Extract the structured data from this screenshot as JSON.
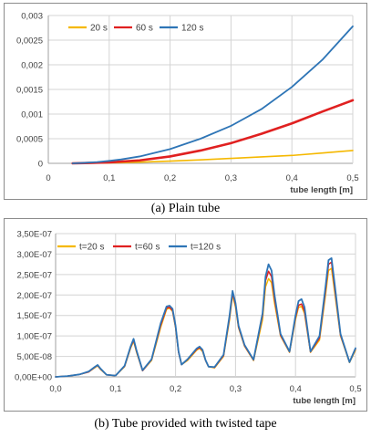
{
  "charts": [
    {
      "id": "a",
      "caption": "(a) Plain tube",
      "chart_data": {
        "type": "line",
        "title": "",
        "xlabel": "tube length [m]",
        "ylabel": "",
        "xlim": [
          0,
          0.5
        ],
        "ylim": [
          0,
          0.003
        ],
        "grid": true,
        "legend": "top-left",
        "x_ticks": [
          "0",
          "0,1",
          "0,2",
          "0,3",
          "0,4",
          "0,5"
        ],
        "y_ticks": [
          "0",
          "0,0005",
          "0,001",
          "0,0015",
          "0,002",
          "0,0025",
          "0,003"
        ],
        "series": [
          {
            "name": "20 s",
            "color": "#f5b800",
            "width": 1.6,
            "x": [
              0.04,
              0.06,
              0.08,
              0.1,
              0.12,
              0.15,
              0.2,
              0.25,
              0.3,
              0.35,
              0.4,
              0.45,
              0.5
            ],
            "y": [
              0.0,
              2e-06,
              6e-06,
              1e-05,
              1.5e-05,
              2.5e-05,
              4.5e-05,
              7e-05,
              0.0001,
              0.00013,
              0.00016,
              0.00021,
              0.00026
            ]
          },
          {
            "name": "60 s",
            "color": "#e02020",
            "width": 2.6,
            "x": [
              0.04,
              0.06,
              0.08,
              0.1,
              0.12,
              0.15,
              0.2,
              0.25,
              0.3,
              0.35,
              0.4,
              0.45,
              0.5
            ],
            "y": [
              0.0,
              5e-06,
              1.2e-05,
              2e-05,
              3.5e-05,
              6e-05,
              0.00014,
              0.00026,
              0.00041,
              0.0006,
              0.00081,
              0.00105,
              0.00128
            ]
          },
          {
            "name": "120 s",
            "color": "#2e75b6",
            "width": 1.8,
            "x": [
              0.04,
              0.06,
              0.08,
              0.1,
              0.12,
              0.15,
              0.2,
              0.25,
              0.3,
              0.35,
              0.4,
              0.45,
              0.5
            ],
            "y": [
              0.0,
              1e-05,
              2.5e-05,
              5e-05,
              8e-05,
              0.00014,
              0.00029,
              0.0005,
              0.00076,
              0.0011,
              0.00155,
              0.0021,
              0.00278
            ]
          }
        ]
      }
    },
    {
      "id": "b",
      "caption": "(b) Tube provided with twisted tape",
      "chart_data": {
        "type": "line",
        "title": "",
        "xlabel": "tube length [m]",
        "ylabel": "",
        "xlim": [
          0,
          0.5
        ],
        "ylim": [
          0,
          3.5e-07
        ],
        "grid": true,
        "legend": "top-left",
        "x_ticks": [
          "0,0",
          "0,1",
          "0,2",
          "0,3",
          "0,4",
          "0,5"
        ],
        "y_ticks": [
          "0,00E+00",
          "5,00E-08",
          "1,00E-07",
          "1,50E-07",
          "2,00E-07",
          "2,50E-07",
          "3,00E-07",
          "3,50E-07"
        ],
        "series": [
          {
            "name": "t=20 s",
            "color": "#f5b800",
            "width": 1.5,
            "x": [
              0.0,
              0.02,
              0.04,
              0.055,
              0.065,
              0.07,
              0.075,
              0.085,
              0.1,
              0.115,
              0.125,
              0.13,
              0.135,
              0.145,
              0.16,
              0.175,
              0.185,
              0.19,
              0.195,
              0.2,
              0.205,
              0.21,
              0.22,
              0.235,
              0.24,
              0.245,
              0.25,
              0.255,
              0.265,
              0.28,
              0.29,
              0.295,
              0.3,
              0.305,
              0.315,
              0.33,
              0.345,
              0.35,
              0.355,
              0.36,
              0.365,
              0.375,
              0.39,
              0.4,
              0.405,
              0.41,
              0.415,
              0.425,
              0.44,
              0.45,
              0.455,
              0.46,
              0.465,
              0.475,
              0.49,
              0.5
            ],
            "y": [
              0,
              2e-09,
              6e-09,
              1.2e-08,
              2.2e-08,
              2.7e-08,
              1.8e-08,
              5e-09,
              3e-09,
              2.5e-08,
              7e-08,
              8.7e-08,
              6e-08,
              1.5e-08,
              4e-08,
              1.2e-07,
              1.65e-07,
              1.68e-07,
              1.6e-07,
              1.2e-07,
              6e-08,
              3e-08,
              4e-08,
              6.5e-08,
              7e-08,
              6.2e-08,
              4e-08,
              2.5e-08,
              2.2e-08,
              5e-08,
              1.4e-07,
              2e-07,
              1.7e-07,
              1.2e-07,
              7.5e-08,
              4e-08,
              1.4e-07,
              2.2e-07,
              2.4e-07,
              2.3e-07,
              1.8e-07,
              1e-07,
              6e-08,
              1.4e-07,
              1.7e-07,
              1.72e-07,
              1.55e-07,
              6e-08,
              9e-08,
              2e-07,
              2.6e-07,
              2.65e-07,
              2.1e-07,
              1e-07,
              3.5e-08,
              6.5e-08
            ]
          },
          {
            "name": "t=60 s",
            "color": "#e02020",
            "width": 1.5,
            "x": [
              0.0,
              0.02,
              0.04,
              0.055,
              0.065,
              0.07,
              0.075,
              0.085,
              0.1,
              0.115,
              0.125,
              0.13,
              0.135,
              0.145,
              0.16,
              0.175,
              0.185,
              0.19,
              0.195,
              0.2,
              0.205,
              0.21,
              0.22,
              0.235,
              0.24,
              0.245,
              0.25,
              0.255,
              0.265,
              0.28,
              0.29,
              0.295,
              0.3,
              0.305,
              0.315,
              0.33,
              0.345,
              0.35,
              0.355,
              0.36,
              0.365,
              0.375,
              0.39,
              0.4,
              0.405,
              0.41,
              0.415,
              0.425,
              0.44,
              0.45,
              0.455,
              0.46,
              0.465,
              0.475,
              0.49,
              0.5
            ],
            "y": [
              0,
              2e-09,
              6e-09,
              1.2e-08,
              2.3e-08,
              2.8e-08,
              1.9e-08,
              5e-09,
              3e-09,
              2.6e-08,
              7.2e-08,
              9e-08,
              6.2e-08,
              1.5e-08,
              4.2e-08,
              1.25e-07,
              1.68e-07,
              1.7e-07,
              1.62e-07,
              1.22e-07,
              6e-08,
              3e-08,
              4.2e-08,
              6.7e-08,
              7.2e-08,
              6.4e-08,
              4e-08,
              2.5e-08,
              2.3e-08,
              5.2e-08,
              1.45e-07,
              2.05e-07,
              1.75e-07,
              1.22e-07,
              7.6e-08,
              4.1e-08,
              1.5e-07,
              2.35e-07,
              2.58e-07,
              2.45e-07,
              1.9e-07,
              1.02e-07,
              6.1e-08,
              1.45e-07,
              1.75e-07,
              1.78e-07,
              1.6e-07,
              6.1e-08,
              9.5e-08,
              2.1e-07,
              2.75e-07,
              2.8e-07,
              2.2e-07,
              1.02e-07,
              3.6e-08,
              6.8e-08
            ]
          },
          {
            "name": "t=120 s",
            "color": "#2e75b6",
            "width": 1.8,
            "x": [
              0.0,
              0.02,
              0.04,
              0.055,
              0.065,
              0.07,
              0.075,
              0.085,
              0.1,
              0.115,
              0.125,
              0.13,
              0.135,
              0.145,
              0.16,
              0.175,
              0.185,
              0.19,
              0.195,
              0.2,
              0.205,
              0.21,
              0.22,
              0.235,
              0.24,
              0.245,
              0.25,
              0.255,
              0.265,
              0.28,
              0.29,
              0.295,
              0.3,
              0.305,
              0.315,
              0.33,
              0.345,
              0.35,
              0.355,
              0.36,
              0.365,
              0.375,
              0.39,
              0.4,
              0.405,
              0.41,
              0.415,
              0.425,
              0.44,
              0.45,
              0.455,
              0.46,
              0.465,
              0.475,
              0.49,
              0.5
            ],
            "y": [
              0,
              2e-09,
              6e-09,
              1.3e-08,
              2.4e-08,
              2.9e-08,
              2e-08,
              5e-09,
              3e-09,
              2.7e-08,
              7.4e-08,
              9.3e-08,
              6.4e-08,
              1.6e-08,
              4.3e-08,
              1.3e-07,
              1.72e-07,
              1.74e-07,
              1.66e-07,
              1.25e-07,
              6.2e-08,
              3e-08,
              4.3e-08,
              6.9e-08,
              7.4e-08,
              6.6e-08,
              4.1e-08,
              2.5e-08,
              2.4e-08,
              5.4e-08,
              1.5e-07,
              2.1e-07,
              1.8e-07,
              1.25e-07,
              7.8e-08,
              4.2e-08,
              1.55e-07,
              2.45e-07,
              2.75e-07,
              2.6e-07,
              2e-07,
              1.05e-07,
              6.2e-08,
              1.5e-07,
              1.85e-07,
              1.9e-07,
              1.7e-07,
              6.2e-08,
              1e-07,
              2.2e-07,
              2.85e-07,
              2.9e-07,
              2.3e-07,
              1.05e-07,
              3.6e-08,
              7e-08
            ]
          }
        ]
      }
    }
  ]
}
